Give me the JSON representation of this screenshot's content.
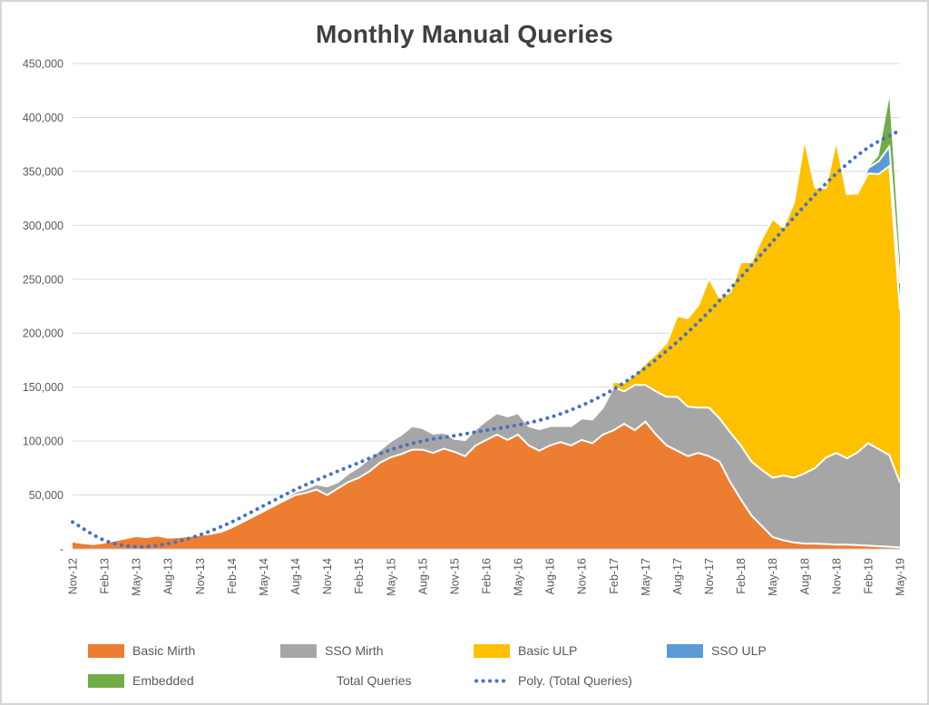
{
  "chart_data": {
    "type": "area",
    "stacked": true,
    "title": "Monthly Manual Queries",
    "xlabel": "",
    "ylabel": "",
    "ylim": [
      0,
      450000
    ],
    "grid": true,
    "tick_every": 3,
    "y_ticks": [
      {
        "label": "450,000",
        "value": 450000
      },
      {
        "label": "400,000",
        "value": 400000
      },
      {
        "label": "350,000",
        "value": 350000
      },
      {
        "label": "300,000",
        "value": 300000
      },
      {
        "label": "250,000",
        "value": 250000
      },
      {
        "label": "200,000",
        "value": 200000
      },
      {
        "label": "150,000",
        "value": 150000
      },
      {
        "label": "100,000",
        "value": 100000
      },
      {
        "label": "50,000",
        "value": 50000
      },
      {
        "label": "-",
        "value": 0
      }
    ],
    "x_tick_labels": [
      "Nov-12",
      "Feb-13",
      "May-13",
      "Aug-13",
      "Nov-13",
      "Feb-14",
      "May-14",
      "Aug-14",
      "Nov-14",
      "Feb-15",
      "May-15",
      "Aug-15",
      "Nov-15",
      "Feb-16",
      "May-16",
      "Aug-16",
      "Nov-16",
      "Feb-17",
      "May-17",
      "Aug-17",
      "Nov-17",
      "Feb-18",
      "May-18",
      "Aug-18",
      "Nov-18",
      "Feb-19",
      "May-19"
    ],
    "series": [
      {
        "name": "Basic Mirth",
        "color": "#ED7D31",
        "values": [
          7000,
          5500,
          4500,
          6000,
          8000,
          10000,
          12000,
          11000,
          12500,
          10500,
          11000,
          12000,
          13000,
          14000,
          16000,
          20000,
          25000,
          30000,
          35000,
          40000,
          45000,
          50000,
          52000,
          55000,
          50000,
          56000,
          62000,
          66000,
          72000,
          80000,
          85000,
          88000,
          92000,
          92000,
          89000,
          93000,
          90000,
          86000,
          96000,
          101000,
          106000,
          101000,
          106000,
          96000,
          91000,
          96000,
          99000,
          96000,
          101000,
          98000,
          106000,
          110000,
          116000,
          110000,
          118000,
          106000,
          96000,
          91000,
          86000,
          89000,
          86000,
          81000,
          62000,
          46000,
          31000,
          21000,
          11000,
          8000,
          6000,
          5000,
          5000,
          4500,
          4000,
          4000,
          3500,
          3000,
          2500,
          2000,
          1500
        ]
      },
      {
        "name": "SSO Mirth",
        "color": "#A6A6A6",
        "values": [
          0,
          0,
          0,
          0,
          0,
          0,
          0,
          0,
          0,
          0,
          0,
          0,
          0,
          0,
          0,
          0,
          0,
          0,
          0,
          0,
          2000,
          3000,
          4000,
          5000,
          8000,
          6000,
          8000,
          10000,
          12000,
          12000,
          15000,
          18000,
          22000,
          20000,
          18000,
          15000,
          12000,
          15000,
          15000,
          18000,
          20000,
          22000,
          20000,
          18000,
          20000,
          18000,
          15000,
          18000,
          20000,
          22000,
          25000,
          40000,
          30000,
          42000,
          34000,
          40000,
          45000,
          50000,
          46000,
          42000,
          45000,
          40000,
          46000,
          50000,
          50000,
          52000,
          55000,
          60000,
          60000,
          65000,
          70000,
          80000,
          85000,
          80000,
          86000,
          95000,
          90000,
          85000,
          60000
        ]
      },
      {
        "name": "Basic ULP",
        "color": "#FFC000",
        "values": [
          0,
          0,
          0,
          0,
          0,
          0,
          0,
          0,
          0,
          0,
          0,
          0,
          0,
          0,
          0,
          0,
          0,
          0,
          0,
          0,
          0,
          0,
          0,
          0,
          0,
          0,
          0,
          0,
          0,
          0,
          0,
          0,
          0,
          0,
          0,
          0,
          0,
          0,
          0,
          0,
          0,
          0,
          0,
          0,
          0,
          0,
          0,
          0,
          0,
          2000,
          3000,
          5000,
          8000,
          10000,
          20000,
          35000,
          50000,
          75000,
          82000,
          95000,
          120000,
          112000,
          130000,
          170000,
          185000,
          215000,
          240000,
          230000,
          255000,
          310000,
          260000,
          250000,
          290000,
          245000,
          240000,
          250000,
          255000,
          268000,
          160000
        ]
      },
      {
        "name": "SSO ULP",
        "color": "#5B9BD5",
        "values": [
          0,
          0,
          0,
          0,
          0,
          0,
          0,
          0,
          0,
          0,
          0,
          0,
          0,
          0,
          0,
          0,
          0,
          0,
          0,
          0,
          0,
          0,
          0,
          0,
          0,
          0,
          0,
          0,
          0,
          0,
          0,
          0,
          0,
          0,
          0,
          0,
          0,
          0,
          0,
          0,
          0,
          0,
          0,
          0,
          0,
          0,
          0,
          0,
          0,
          0,
          0,
          0,
          0,
          0,
          0,
          0,
          0,
          0,
          0,
          0,
          0,
          0,
          0,
          0,
          0,
          0,
          0,
          0,
          0,
          0,
          0,
          0,
          0,
          0,
          2000,
          5000,
          12000,
          18000,
          25000
        ]
      },
      {
        "name": "Embedded",
        "color": "#70AD47",
        "values": [
          0,
          0,
          0,
          0,
          0,
          0,
          0,
          0,
          0,
          0,
          0,
          0,
          0,
          0,
          0,
          0,
          0,
          0,
          0,
          0,
          0,
          0,
          0,
          0,
          0,
          0,
          0,
          0,
          0,
          0,
          0,
          0,
          0,
          0,
          0,
          0,
          0,
          0,
          0,
          0,
          0,
          0,
          0,
          0,
          0,
          0,
          0,
          0,
          0,
          0,
          0,
          0,
          0,
          0,
          0,
          0,
          0,
          0,
          0,
          0,
          0,
          0,
          0,
          0,
          0,
          0,
          0,
          0,
          0,
          0,
          0,
          0,
          0,
          0,
          0,
          0,
          5000,
          45000,
          20000
        ]
      }
    ],
    "trendline": {
      "name": "Poly. (Total Queries)",
      "color": "#4472C4",
      "style": "dotted",
      "values_at_ticks": [
        25000,
        8000,
        2000,
        5000,
        13000,
        25000,
        40000,
        55000,
        68000,
        80000,
        92000,
        100000,
        105000,
        110000,
        115000,
        122000,
        133000,
        148000,
        168000,
        192000,
        220000,
        252000,
        285000,
        318000,
        348000,
        372000,
        388000
      ]
    },
    "legend": [
      {
        "label": "Basic Mirth",
        "swatch": "area",
        "color": "#ED7D31"
      },
      {
        "label": "SSO Mirth",
        "swatch": "area",
        "color": "#A6A6A6"
      },
      {
        "label": "Basic ULP",
        "swatch": "area",
        "color": "#FFC000"
      },
      {
        "label": "SSO ULP",
        "swatch": "area",
        "color": "#5B9BD5"
      },
      {
        "label": "Embedded",
        "swatch": "area",
        "color": "#70AD47"
      },
      {
        "label": "Total Queries",
        "swatch": "none",
        "color": ""
      },
      {
        "label": "Poly. (Total Queries)",
        "swatch": "dotted-line",
        "color": "#4472C4"
      }
    ],
    "colors": {
      "grid": "#D9D9D9",
      "axis_line": "#C9C9C9",
      "axis_text": "#595959",
      "title_text": "#404040",
      "separator": "#FFFFFF"
    },
    "legend_position": "bottom"
  }
}
